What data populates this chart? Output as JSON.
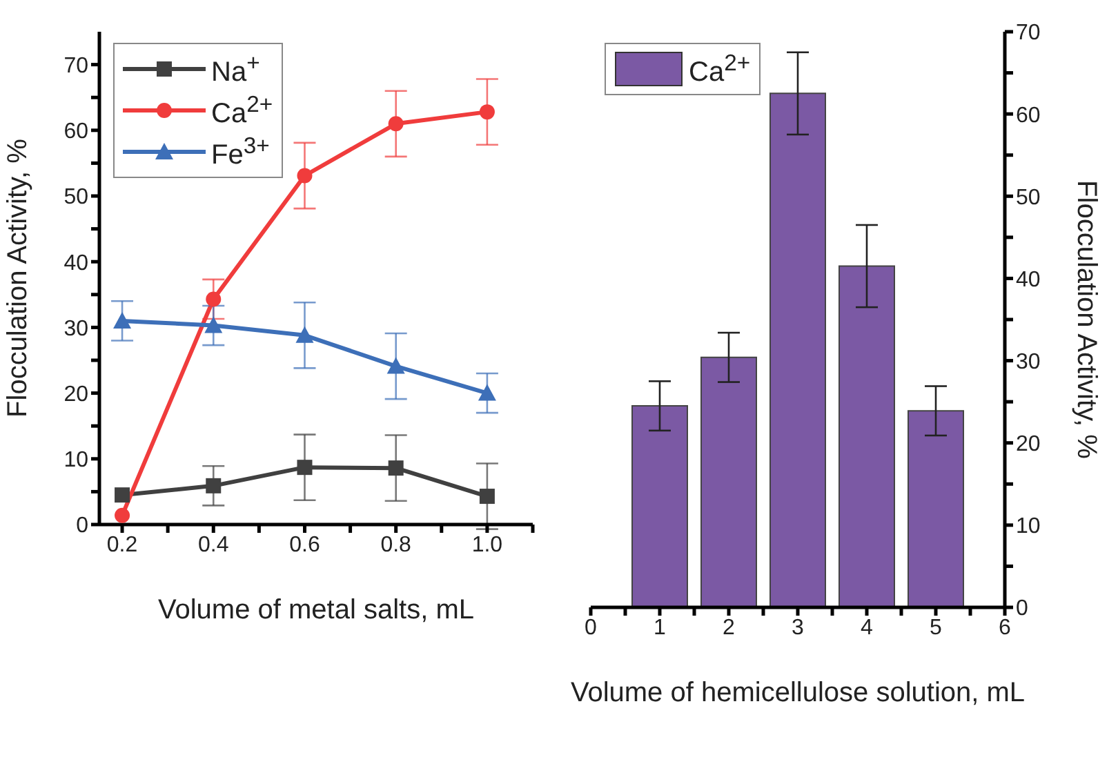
{
  "chart_data": [
    {
      "type": "line",
      "xlabel": "Volume of metal salts, mL",
      "ylabel": "Flocculation Activity, %",
      "x": [
        0.2,
        0.4,
        0.6,
        0.8,
        1.0
      ],
      "series": [
        {
          "name": "Na$^{+}$",
          "color": "#404040",
          "marker": "square",
          "values": [
            4.5,
            5.9,
            8.7,
            8.6,
            4.3
          ],
          "errors": [
            null,
            3,
            5,
            5,
            5
          ]
        },
        {
          "name": "Ca$^{2+}$",
          "color": "#f03c3c",
          "marker": "circle",
          "values": [
            1.4,
            34.3,
            53.1,
            61.0,
            62.8
          ],
          "errors": [
            null,
            3,
            5,
            5,
            5
          ]
        },
        {
          "name": "Fe$^{3+}$",
          "color": "#3d6fb8",
          "marker": "triangle",
          "values": [
            31.0,
            30.3,
            28.8,
            24.1,
            20.0
          ],
          "errors": [
            3,
            3,
            5,
            5,
            3
          ]
        }
      ],
      "xlim": [
        0.15,
        1.1
      ],
      "xticks": [
        0.2,
        {
          "value": 0.3,
          "label": null
        },
        0.4,
        {
          "value": 0.5,
          "label": null
        },
        0.6,
        {
          "value": 0.7,
          "label": null
        },
        0.8,
        {
          "value": 0.9,
          "label": null
        },
        {
          "value": 1.0,
          "label": "1.0"
        },
        {
          "value": 1.1,
          "label": null
        }
      ],
      "ylim": [
        0,
        75
      ],
      "yticks": [
        0,
        {
          "value": 5,
          "label": null
        },
        10,
        {
          "value": 15,
          "label": null
        },
        20,
        {
          "value": 25,
          "label": null
        },
        30,
        {
          "value": 35,
          "label": null
        },
        40,
        {
          "value": 45,
          "label": null
        },
        50,
        {
          "value": 55,
          "label": null
        },
        60,
        {
          "value": 65,
          "label": null
        },
        70
      ],
      "grid": false,
      "legend": "top left",
      "line_style": "solid"
    },
    {
      "type": "bar",
      "xlabel": "Volume of hemicellulose solution, mL",
      "y2label": "Flocculation Activity, %",
      "x": [
        1,
        2,
        3,
        4,
        5
      ],
      "series": [
        {
          "name": "Ca$^{2+}$",
          "color": "#7b59a4",
          "axis": "y2",
          "values": [
            24.5,
            30.4,
            62.5,
            41.5,
            23.9
          ],
          "errors": [
            3,
            3,
            5,
            5,
            3
          ]
        }
      ],
      "xlim": [
        0,
        6
      ],
      "xticks": [
        0,
        {
          "value": 0.5,
          "label": null
        },
        1,
        {
          "value": 1.5,
          "label": null
        },
        2,
        {
          "value": 2.5,
          "label": null
        },
        3,
        {
          "value": 3.5,
          "label": null
        },
        4,
        {
          "value": 4.5,
          "label": null
        },
        5,
        {
          "value": 5.5,
          "label": null
        },
        6
      ],
      "y2lim": [
        0,
        70
      ],
      "y2ticks": [
        0,
        {
          "value": 5,
          "label": null
        },
        10,
        {
          "value": 15,
          "label": null
        },
        20,
        {
          "value": 25,
          "label": null
        },
        30,
        {
          "value": 35,
          "label": null
        },
        40,
        {
          "value": 45,
          "label": null
        },
        50,
        {
          "value": 55,
          "label": null
        },
        60,
        {
          "value": 65,
          "label": null
        },
        70
      ],
      "grid": false,
      "legend": "top left"
    }
  ]
}
